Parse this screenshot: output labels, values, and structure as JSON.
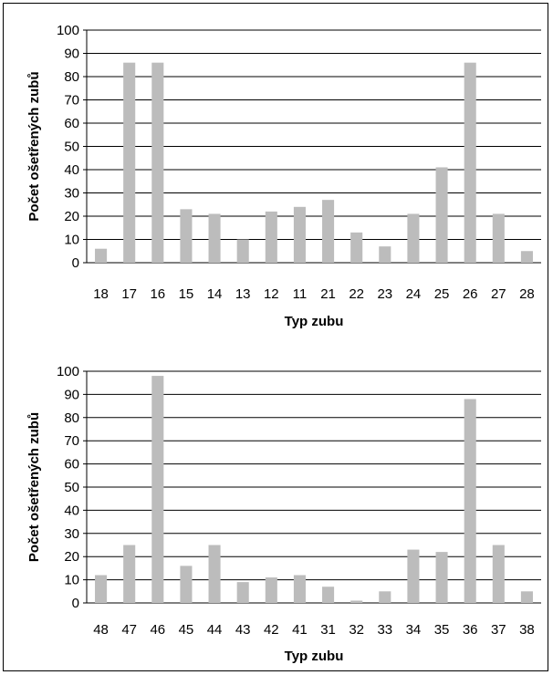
{
  "chart_data": [
    {
      "type": "bar",
      "categories": [
        "18",
        "17",
        "16",
        "15",
        "14",
        "13",
        "12",
        "11",
        "21",
        "22",
        "23",
        "24",
        "25",
        "26",
        "27",
        "28"
      ],
      "values": [
        6,
        86,
        86,
        23,
        21,
        10,
        22,
        24,
        27,
        13,
        7,
        21,
        41,
        86,
        21,
        5
      ],
      "title": "",
      "xlabel": "Typ zubu",
      "ylabel": "Počet ošetřených zubů",
      "ylim": [
        0,
        100
      ],
      "yticks": [
        0,
        10,
        20,
        30,
        40,
        50,
        60,
        70,
        80,
        90,
        100
      ],
      "grid": true,
      "legend": "none",
      "bar_color": "#bcbcbc"
    },
    {
      "type": "bar",
      "categories": [
        "48",
        "47",
        "46",
        "45",
        "44",
        "43",
        "42",
        "41",
        "31",
        "32",
        "33",
        "34",
        "35",
        "36",
        "37",
        "38"
      ],
      "values": [
        12,
        25,
        98,
        16,
        25,
        9,
        11,
        12,
        7,
        1,
        5,
        23,
        22,
        88,
        25,
        5
      ],
      "title": "",
      "xlabel": "Typ zubu",
      "ylabel": "Počet ošetřených zubů",
      "ylim": [
        0,
        100
      ],
      "yticks": [
        0,
        10,
        20,
        30,
        40,
        50,
        60,
        70,
        80,
        90,
        100
      ],
      "grid": true,
      "legend": "none",
      "bar_color": "#bcbcbc"
    }
  ]
}
